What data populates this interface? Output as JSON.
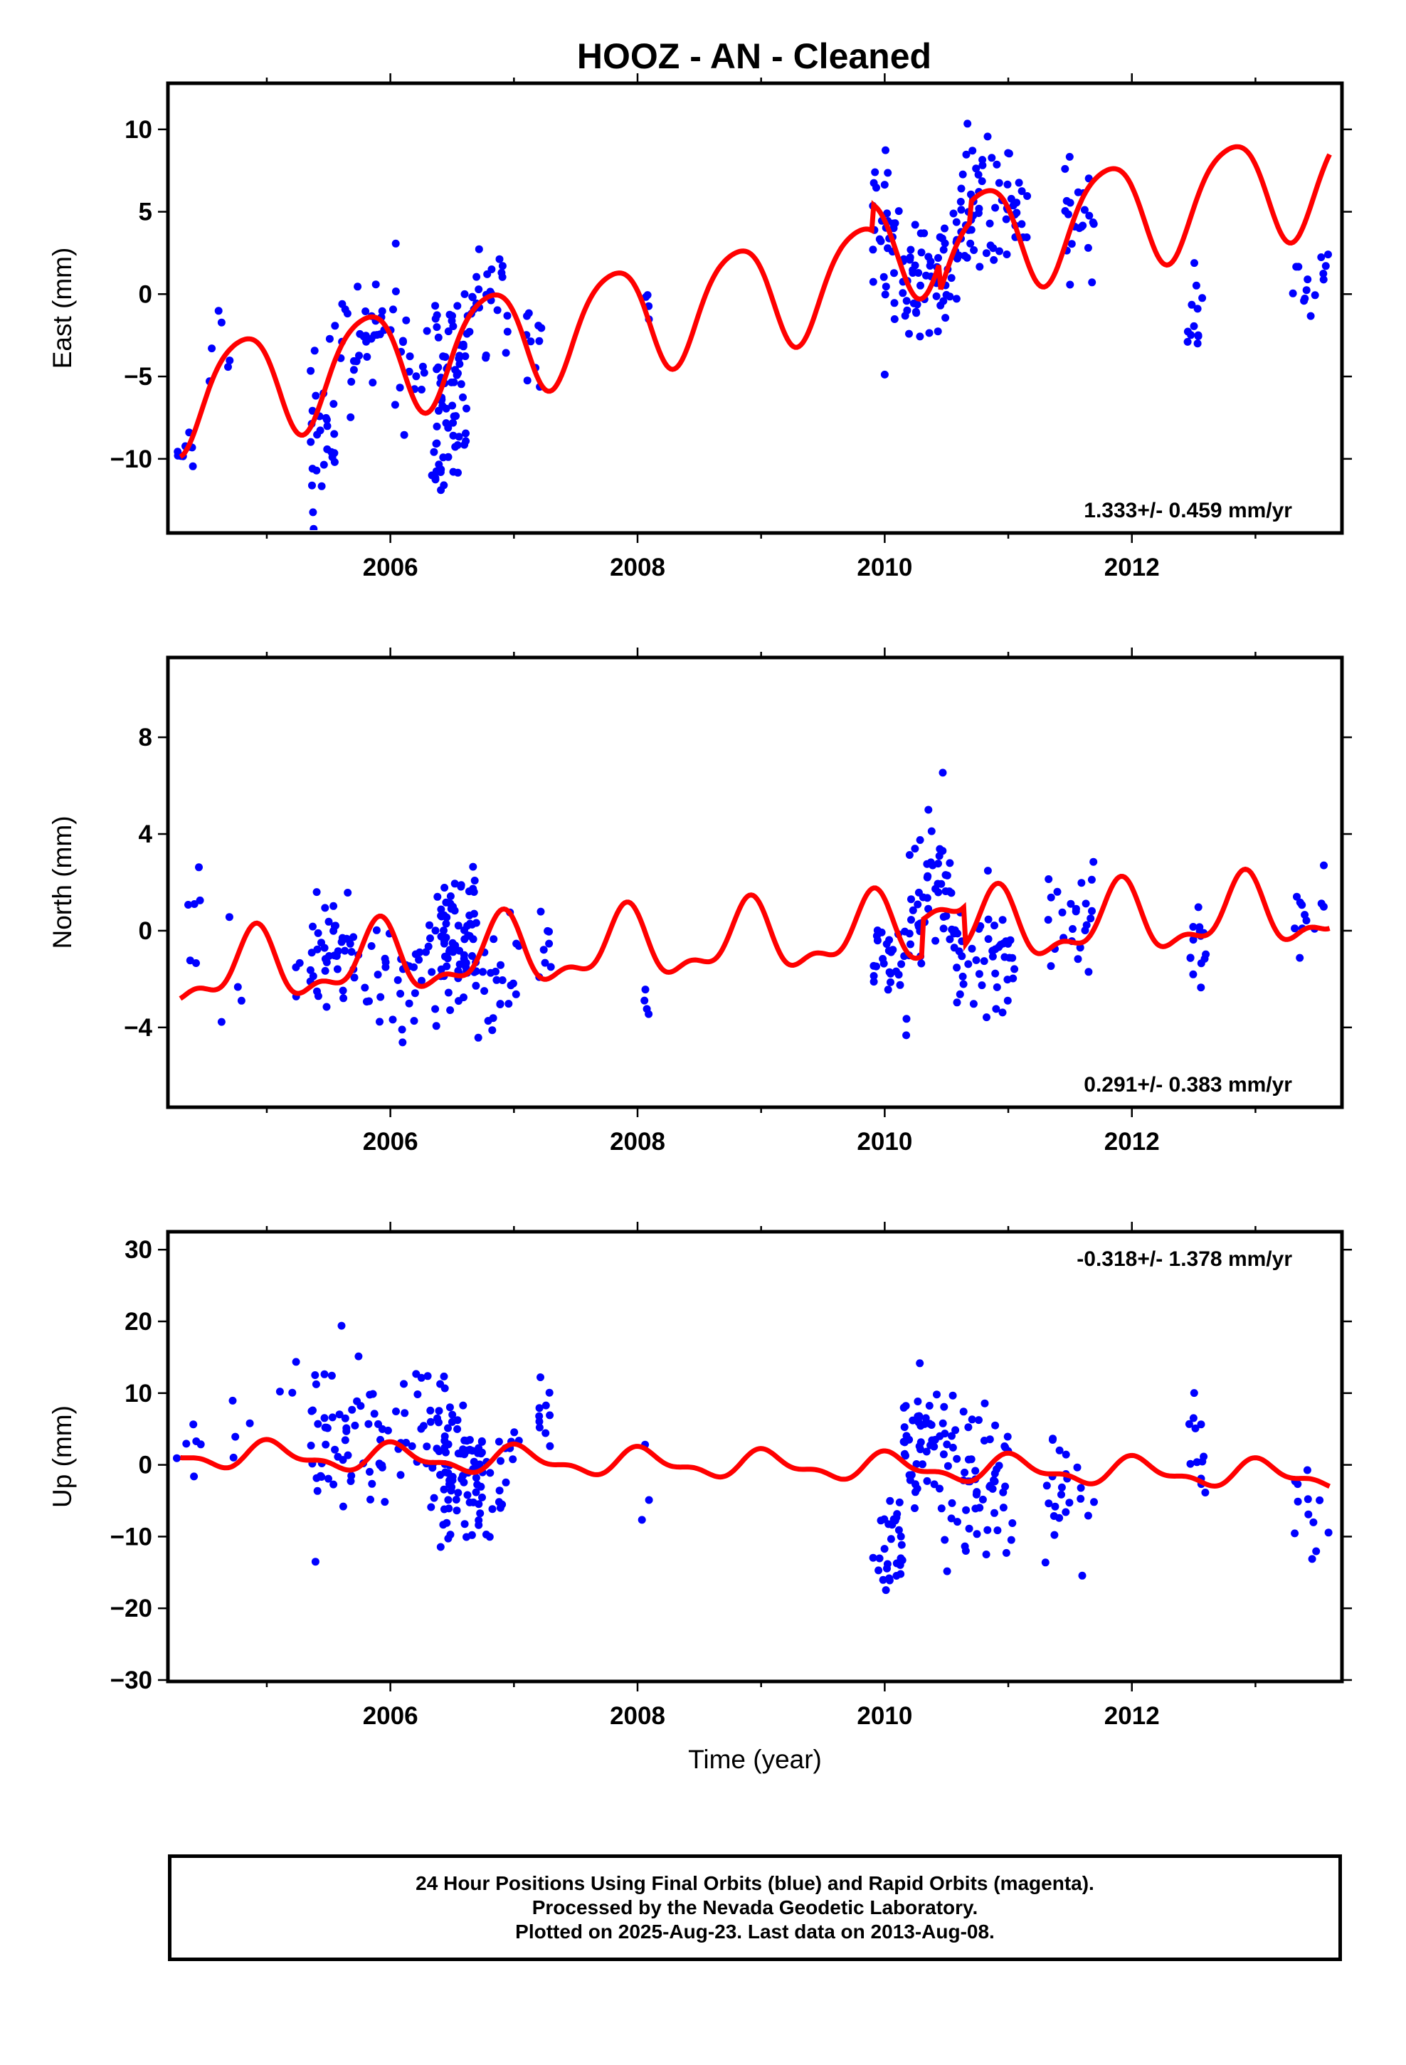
{
  "title": "HOOZ  - AN - Cleaned",
  "footer": {
    "line1": "24 Hour Positions Using Final Orbits (blue) and Rapid Orbits (magenta).",
    "line2": "Processed by the Nevada Geodetic Laboratory.",
    "line3": "Plotted on 2025-Aug-23. Last data on 2013-Aug-08."
  },
  "colors": {
    "data_points": "#0000ff",
    "model_fit": "#ff0000",
    "frame": "#000000"
  },
  "chart_data": [
    {
      "type": "scatter",
      "panel": "east",
      "ylabel": "East (mm)",
      "xlabel": "",
      "xlim": [
        2004.2,
        2013.7
      ],
      "ylim": [
        -14.5,
        12.8
      ],
      "xticks": [
        2006,
        2008,
        2010,
        2012
      ],
      "yticks": [
        -10,
        -5,
        0,
        5,
        10
      ],
      "grid": false,
      "rate": "1.333+/- 0.459 mm/yr",
      "rate_position": "bottom-right",
      "fit": {
        "slope": 1.333,
        "mean": 0.0,
        "amp1": 3.2,
        "phase1": 0.45,
        "amp2": 0.5,
        "phase2": 0.1,
        "jumps": [
          [
            2009.9,
            1.6
          ],
          [
            2010.45,
            -1.8
          ],
          [
            2010.7,
            1.2
          ]
        ]
      },
      "clusters": [
        [
          2004.27,
          2004.42,
          -9.5,
          9,
          2
        ],
        [
          2004.5,
          2004.8,
          -3.5,
          6,
          3
        ],
        [
          2005.35,
          2005.55,
          -7.5,
          28,
          4
        ],
        [
          2005.55,
          2005.95,
          -3.0,
          32,
          4
        ],
        [
          2006.0,
          2006.4,
          -4.5,
          24,
          3
        ],
        [
          2006.35,
          2006.62,
          -6.0,
          70,
          4.5
        ],
        [
          2006.62,
          2006.95,
          0.0,
          28,
          3
        ],
        [
          2007.1,
          2007.3,
          -3.0,
          10,
          2.5
        ],
        [
          2008.0,
          2008.1,
          0.0,
          4,
          1
        ],
        [
          2009.9,
          2010.15,
          3.0,
          34,
          4
        ],
        [
          2010.15,
          2010.5,
          1.0,
          46,
          3
        ],
        [
          2010.5,
          2011.0,
          5.0,
          60,
          3.5
        ],
        [
          2011.0,
          2011.2,
          5.0,
          14,
          2
        ],
        [
          2011.45,
          2011.7,
          5.0,
          22,
          3
        ],
        [
          2012.45,
          2012.58,
          -1.0,
          12,
          3
        ],
        [
          2013.3,
          2013.6,
          1.0,
          14,
          2
        ]
      ]
    },
    {
      "type": "scatter",
      "panel": "north",
      "ylabel": "North (mm)",
      "xlabel": "",
      "xlim": [
        2004.2,
        2013.7
      ],
      "ylim": [
        -7.3,
        11.3
      ],
      "xticks": [
        2006,
        2008,
        2010,
        2012
      ],
      "yticks": [
        -4,
        0,
        4,
        8
      ],
      "grid": false,
      "rate": "0.291+/- 0.383 mm/yr",
      "rate_position": "bottom-right",
      "fit": {
        "slope": 0.291,
        "mean": -0.4,
        "amp1": 1.3,
        "phase1": 0.35,
        "amp2": 0.6,
        "phase2": 0.2,
        "jumps": [
          [
            2010.3,
            1.5
          ],
          [
            2010.65,
            -1.6
          ]
        ]
      },
      "clusters": [
        [
          2004.27,
          2004.5,
          0.5,
          6,
          3
        ],
        [
          2004.6,
          2004.9,
          -0.8,
          4,
          2
        ],
        [
          2005.1,
          2005.3,
          -1.0,
          3,
          1.5
        ],
        [
          2005.35,
          2005.75,
          -1.0,
          40,
          2.2
        ],
        [
          2005.75,
          2006.1,
          -2.0,
          18,
          2.5
        ],
        [
          2006.1,
          2006.4,
          -1.5,
          20,
          2.5
        ],
        [
          2006.4,
          2006.7,
          -0.5,
          70,
          2.3
        ],
        [
          2006.7,
          2007.05,
          -1.5,
          22,
          2
        ],
        [
          2007.2,
          2007.3,
          -0.5,
          8,
          1.5
        ],
        [
          2008.05,
          2008.1,
          -2.4,
          4,
          1
        ],
        [
          2009.9,
          2010.2,
          -1.5,
          30,
          2
        ],
        [
          2010.2,
          2010.55,
          2.0,
          50,
          2.2
        ],
        [
          2010.55,
          2011.05,
          -1.0,
          50,
          2
        ],
        [
          2011.3,
          2011.7,
          0.5,
          24,
          2
        ],
        [
          2012.45,
          2012.6,
          -0.5,
          14,
          1.8
        ],
        [
          2013.3,
          2013.6,
          0.5,
          12,
          1.5
        ]
      ]
    },
    {
      "type": "scatter",
      "panel": "up",
      "ylabel": "Up (mm)",
      "xlabel": "Time (year)",
      "xlim": [
        2004.2,
        2013.7
      ],
      "ylim": [
        -30.2,
        32.5
      ],
      "xticks": [
        2006,
        2008,
        2010,
        2012
      ],
      "yticks": [
        -30,
        -20,
        -10,
        0,
        10,
        20,
        30
      ],
      "grid": false,
      "rate": "-0.318+/- 1.378 mm/yr",
      "rate_position": "top-right",
      "fit": {
        "slope": -0.318,
        "mean": 0.0,
        "amp1": 1.6,
        "phase1": 0.2,
        "amp2": 0.8,
        "phase2": 0.15,
        "jumps": []
      },
      "clusters": [
        [
          2004.27,
          2004.5,
          2.0,
          6,
          4
        ],
        [
          2004.7,
          2004.9,
          5.0,
          4,
          6
        ],
        [
          2005.1,
          2005.25,
          10.0,
          3,
          5
        ],
        [
          2005.35,
          2005.75,
          3.0,
          40,
          9
        ],
        [
          2005.75,
          2006.1,
          2.0,
          22,
          9
        ],
        [
          2006.1,
          2006.4,
          5.0,
          24,
          9
        ],
        [
          2006.4,
          2006.75,
          -1.0,
          80,
          9
        ],
        [
          2006.75,
          2007.05,
          0.0,
          18,
          8
        ],
        [
          2007.2,
          2007.3,
          6.0,
          10,
          5
        ],
        [
          2008.0,
          2008.1,
          -2.0,
          3,
          6
        ],
        [
          2009.9,
          2010.15,
          -12.0,
          30,
          6
        ],
        [
          2010.15,
          2010.5,
          3.0,
          50,
          7
        ],
        [
          2010.5,
          2011.05,
          -3.0,
          60,
          9
        ],
        [
          2011.3,
          2011.7,
          -3.0,
          24,
          8
        ],
        [
          2012.45,
          2012.6,
          3.0,
          12,
          7
        ],
        [
          2013.3,
          2013.6,
          -5.0,
          12,
          6
        ]
      ]
    }
  ]
}
